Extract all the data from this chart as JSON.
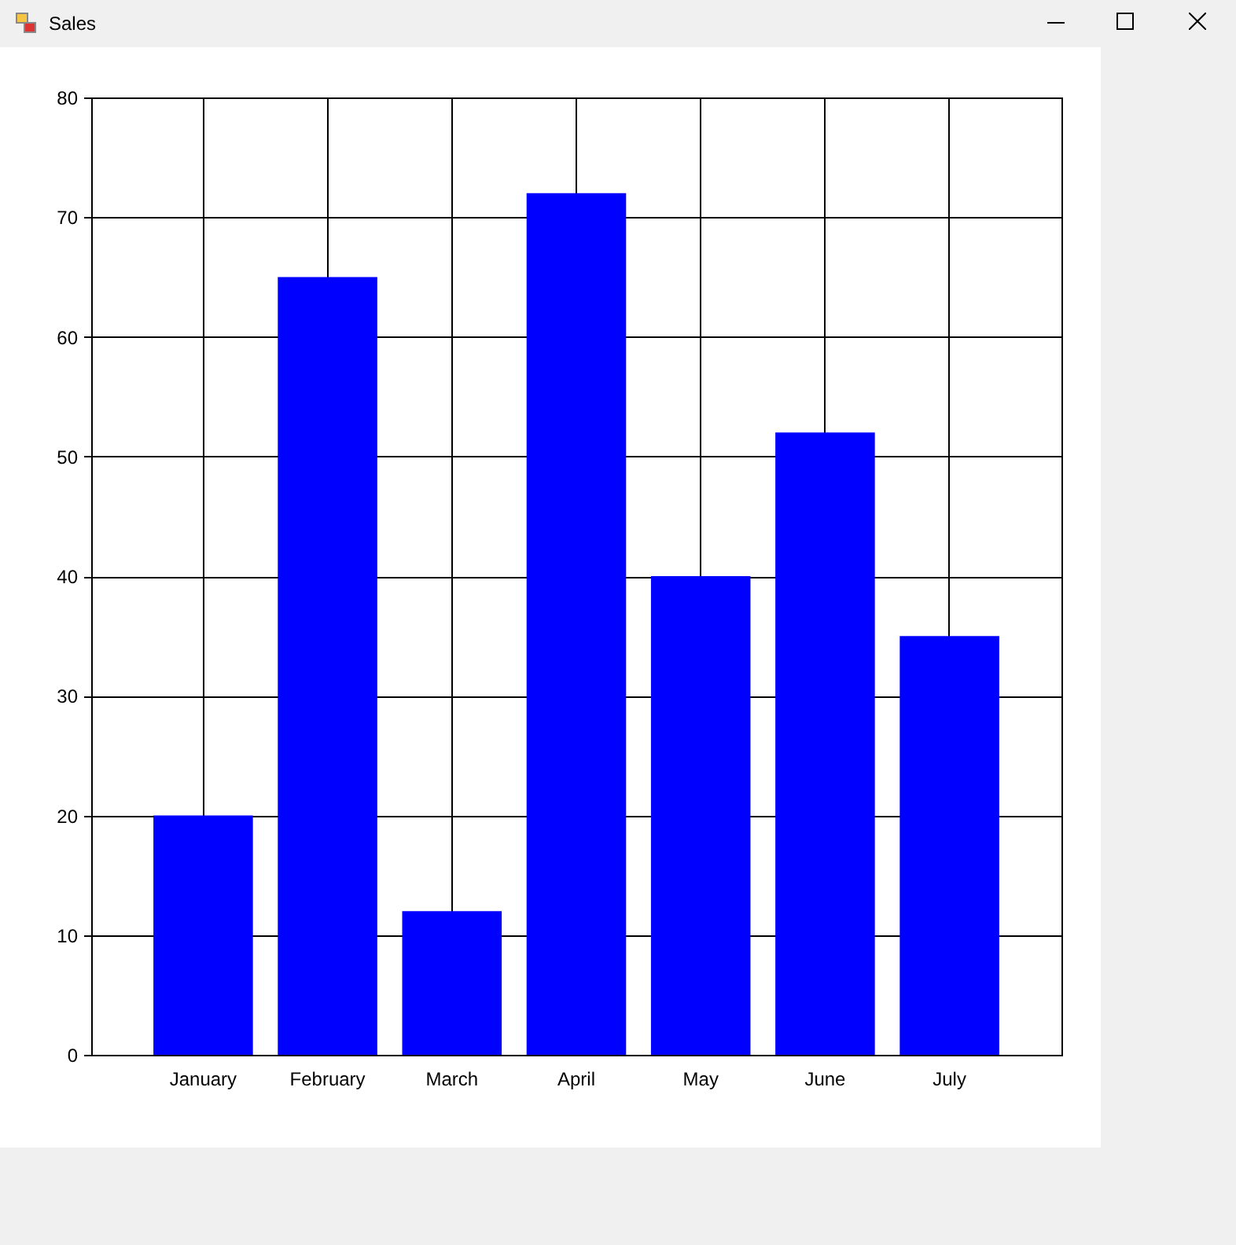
{
  "chart_data": {
    "type": "bar",
    "title": "Sales",
    "categories": [
      "January",
      "February",
      "March",
      "April",
      "May",
      "June",
      "July"
    ],
    "values": [
      20,
      65,
      12,
      72,
      40,
      52,
      35
    ],
    "color": "#0000ff",
    "ylim": [
      0,
      80
    ],
    "yticks": [
      0,
      10,
      20,
      30,
      40,
      50,
      60,
      70,
      80
    ],
    "grid": true
  }
}
